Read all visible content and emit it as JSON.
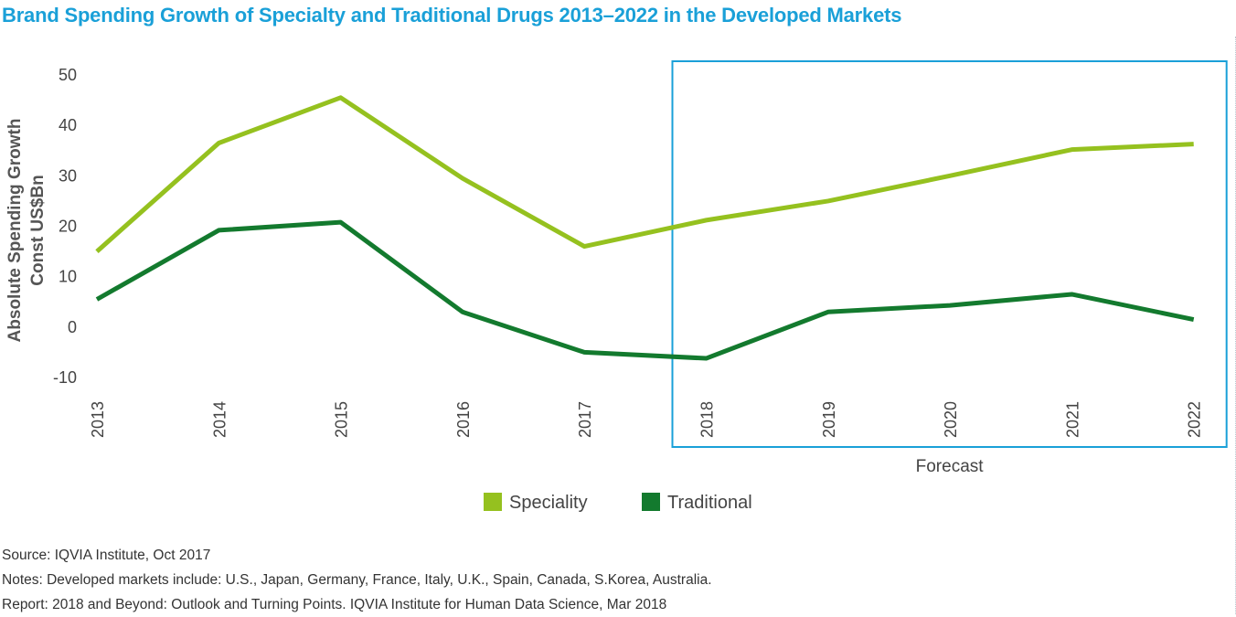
{
  "title": "Brand Spending Growth of Specialty and Traditional Drugs 2013–2022 in the Developed Markets",
  "chart_data": {
    "type": "line",
    "title": "Brand Spending Growth of Specialty and Traditional Drugs 2013–2022 in the Developed Markets",
    "ylabel_lines": [
      "Absolute Spending Growth",
      "Const US$Bn"
    ],
    "xlabel": "",
    "categories": [
      "2013",
      "2014",
      "2015",
      "2016",
      "2017",
      "2018",
      "2019",
      "2020",
      "2021",
      "2022"
    ],
    "yticks": [
      "50",
      "40",
      "30",
      "20",
      "10",
      "0",
      "-10"
    ],
    "ylim": [
      -10,
      50
    ],
    "grid": false,
    "series": [
      {
        "name": "Speciality",
        "color": "#95c11f",
        "values": [
          15,
          36.5,
          45.5,
          29.5,
          16,
          21.2,
          25,
          30,
          35.2,
          36.3
        ]
      },
      {
        "name": "Traditional",
        "color": "#137a2e",
        "values": [
          5.5,
          19.2,
          20.8,
          3,
          -5,
          -6.2,
          3,
          4.3,
          6.5,
          1.5
        ]
      }
    ],
    "forecast_label": "Forecast",
    "forecast_range": [
      "2018",
      "2022"
    ],
    "forecast_box_color": "#1aa0d8",
    "legend_position": "bottom-center"
  },
  "footnotes": {
    "source": "Source: IQVIA Institute, Oct 2017",
    "notes": "Notes: Developed markets include: U.S., Japan, Germany, France, Italy, U.K., Spain, Canada, S.Korea, Australia.",
    "report": "Report: 2018 and Beyond: Outlook and Turning Points. IQVIA Institute for Human Data Science, Mar 2018"
  }
}
